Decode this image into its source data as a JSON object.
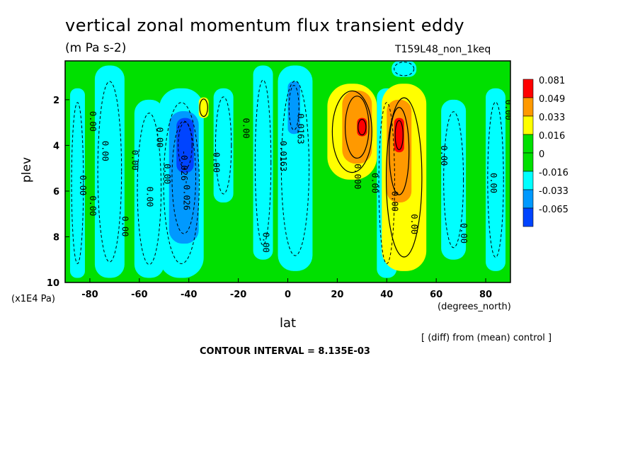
{
  "title": "vertical zonal momentum flux transient eddy",
  "units": "(m Pa s-2)",
  "experiment": "T159L48_non_1keq",
  "diff_note": "[ (diff) from (mean) control ]",
  "contour_interval": "CONTOUR INTERVAL = 8.135E-03",
  "chart_data": {
    "type": "heatmap",
    "xlabel": "lat",
    "x_units": "(degrees_north)",
    "ylabel": "plev",
    "y_units": "(x1E4 Pa)",
    "xlim": [
      -90,
      90
    ],
    "ylim": [
      10,
      0.3
    ],
    "x_ticks": [
      {
        "v": -80,
        "label": "-80"
      },
      {
        "v": -60,
        "label": "-60"
      },
      {
        "v": -40,
        "label": "-40"
      },
      {
        "v": -20,
        "label": "-20"
      },
      {
        "v": 0,
        "label": "0"
      },
      {
        "v": 20,
        "label": "20"
      },
      {
        "v": 40,
        "label": "40"
      },
      {
        "v": 60,
        "label": "60"
      },
      {
        "v": 80,
        "label": "80"
      }
    ],
    "y_ticks": [
      {
        "v": 2,
        "label": "2"
      },
      {
        "v": 4,
        "label": "4"
      },
      {
        "v": 6,
        "label": "6"
      },
      {
        "v": 8,
        "label": "8"
      },
      {
        "v": 10,
        "label": "10"
      }
    ],
    "legend": {
      "placement": "right",
      "levels": [
        {
          "label": "0.081",
          "color": "#ff0000"
        },
        {
          "label": "0.049",
          "color": "#ff9900"
        },
        {
          "label": "0.033",
          "color": "#ffff00"
        },
        {
          "label": "0.016",
          "color": "#00e000"
        },
        {
          "label": "0",
          "color": "#00e000"
        },
        {
          "label": "-0.016",
          "color": "#00ffff"
        },
        {
          "label": "-0.033",
          "color": "#0099ff"
        },
        {
          "label": "-0.065",
          "color": "#0044ff"
        }
      ]
    },
    "regions": [
      {
        "level": "positive",
        "color": "#00e000",
        "lat": [
          -90,
          90
        ],
        "plev": [
          0.3,
          10
        ]
      },
      {
        "level": "negative",
        "color": "#00ffff",
        "lat": [
          -88,
          -82
        ],
        "plev": [
          1.5,
          9.8
        ]
      },
      {
        "level": "negative",
        "color": "#00ffff",
        "lat": [
          -78,
          -66
        ],
        "plev": [
          0.5,
          9.8
        ]
      },
      {
        "level": "negative",
        "color": "#00ffff",
        "lat": [
          -62,
          -50
        ],
        "plev": [
          2,
          9.8
        ]
      },
      {
        "level": "negative",
        "color": "#00ffff",
        "lat": [
          -52,
          -34
        ],
        "plev": [
          1.5,
          9.8
        ]
      },
      {
        "level": "negative",
        "color": "#00ffff",
        "lat": [
          -30,
          -22
        ],
        "plev": [
          1.5,
          6.5
        ]
      },
      {
        "level": "negative",
        "color": "#00ffff",
        "lat": [
          -14,
          -6
        ],
        "plev": [
          0.5,
          9
        ]
      },
      {
        "level": "negative",
        "color": "#00ffff",
        "lat": [
          -4,
          10
        ],
        "plev": [
          0.5,
          9.5
        ]
      },
      {
        "level": "negative",
        "color": "#00ffff",
        "lat": [
          36,
          44
        ],
        "plev": [
          1.5,
          9.8
        ]
      },
      {
        "level": "negative",
        "color": "#00ffff",
        "lat": [
          42,
          52
        ],
        "plev": [
          0.3,
          1
        ]
      },
      {
        "level": "negative",
        "color": "#00ffff",
        "lat": [
          62,
          72
        ],
        "plev": [
          2,
          9
        ]
      },
      {
        "level": "negative",
        "color": "#00ffff",
        "lat": [
          80,
          88
        ],
        "plev": [
          1.5,
          9.5
        ]
      },
      {
        "level": "negative",
        "color": "#0099ff",
        "lat": [
          -48,
          -36
        ],
        "plev": [
          2.5,
          8.3
        ]
      },
      {
        "level": "negative",
        "color": "#0044ff",
        "lat": [
          -45,
          -38
        ],
        "plev": [
          2.8,
          5.2
        ]
      },
      {
        "level": "negative",
        "color": "#0099ff",
        "lat": [
          0,
          5
        ],
        "plev": [
          1.2,
          3.5
        ]
      },
      {
        "level": "positive",
        "color": "#ffff00",
        "lat": [
          16,
          36
        ],
        "plev": [
          1.3,
          5.5
        ]
      },
      {
        "level": "positive",
        "color": "#ff9900",
        "lat": [
          22,
          34
        ],
        "plev": [
          1.6,
          4.8
        ]
      },
      {
        "level": "positive",
        "color": "#ff0000",
        "lat": [
          28,
          32
        ],
        "plev": [
          2.8,
          3.6
        ]
      },
      {
        "level": "positive",
        "color": "#ffff00",
        "lat": [
          38,
          56
        ],
        "plev": [
          1.3,
          9.5
        ]
      },
      {
        "level": "positive",
        "color": "#ff9900",
        "lat": [
          40,
          50
        ],
        "plev": [
          2,
          6.5
        ]
      },
      {
        "level": "positive",
        "color": "#ff0000",
        "lat": [
          43,
          47
        ],
        "plev": [
          2.8,
          4.3
        ]
      },
      {
        "level": "positive",
        "color": "#ffff00",
        "lat": [
          -36,
          -32
        ],
        "plev": [
          1.9,
          2.8
        ]
      }
    ],
    "contour_labels": [
      "0.00",
      "0.00",
      "0.00",
      "0.00",
      "0.00",
      "0.00",
      "0.00",
      "0.00",
      "0.00",
      "-0.026",
      "-0.026",
      "0.00",
      "0.00",
      "0.00",
      "0.0163",
      "0.0163",
      "0.000",
      "0.00",
      "0.00",
      "0.00",
      "0.00",
      "0.00",
      "0.00",
      "0.00"
    ]
  }
}
